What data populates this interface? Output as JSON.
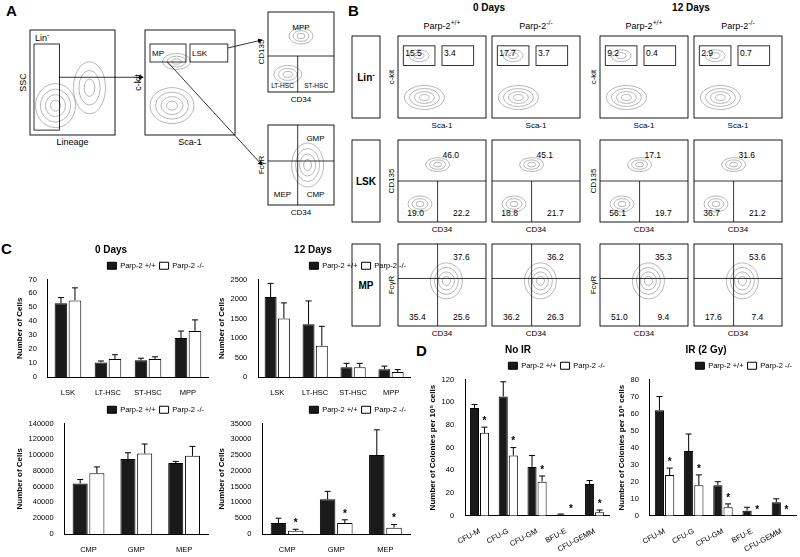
{
  "panel_a": {
    "label": "A",
    "plots": [
      {
        "y_axis": "SSC",
        "x_axis": "Lineage",
        "gates": [
          {
            "text": "Lin",
            "sup": "-"
          }
        ]
      },
      {
        "y_axis": "c-kit",
        "x_axis": "Sca-1",
        "gates": [
          {
            "text": "MP"
          },
          {
            "text": "LSK"
          }
        ]
      },
      {
        "y_axis": "CD135",
        "x_axis": "CD34",
        "gates": [
          {
            "text": "MPP"
          },
          {
            "text": "LT-HSC"
          },
          {
            "text": "ST-HSC"
          }
        ]
      },
      {
        "y_axis": "FcγR",
        "x_axis": "CD34",
        "gates": [
          {
            "text": "GMP"
          },
          {
            "text": "MEP"
          },
          {
            "text": "CMP"
          }
        ]
      }
    ]
  },
  "panel_b": {
    "label": "B",
    "days": [
      "0 Days",
      "12 Days"
    ],
    "genotypes": [
      {
        "text": "Parp-2",
        "sup": "+/+"
      },
      {
        "text": "Parp-2",
        "sup": "-/-"
      }
    ],
    "rows": [
      {
        "label": {
          "text": "Lin",
          "sup": "-"
        },
        "y_axis": "c-kit",
        "x_axis": "Sca-1",
        "values": [
          [
            "15.5",
            "3.4"
          ],
          [
            "17.7",
            "3.7"
          ],
          [
            "9.2",
            "0.4"
          ],
          [
            "2.9",
            "0.7"
          ]
        ]
      },
      {
        "label": {
          "text": "LSK"
        },
        "y_axis": "CD135",
        "x_axis": "CD34",
        "values": [
          [
            "46.0",
            "19.0",
            "22.2"
          ],
          [
            "45.1",
            "18.8",
            "21.7"
          ],
          [
            "17.1",
            "56.1",
            "19.7"
          ],
          [
            "31.6",
            "36.7",
            "21.2"
          ]
        ]
      },
      {
        "label": {
          "text": "MP"
        },
        "y_axis": "FcγR",
        "x_axis": "CD34",
        "values": [
          [
            "37.6",
            "35.4",
            "25.6"
          ],
          [
            "36.2",
            "36.2",
            "26.3"
          ],
          [
            "35.3",
            "51.0",
            "9.4"
          ],
          [
            "53.6",
            "17.6",
            "7.4"
          ]
        ]
      }
    ]
  },
  "panel_c": {
    "label": "C"
  },
  "panel_d": {
    "label": "D"
  },
  "chart_data": [
    {
      "type": "bar",
      "title": "0 Days",
      "categories": [
        "LSK",
        "LT-HSC",
        "ST-HSC",
        "MPP"
      ],
      "y_label": "Number of Cells",
      "ylim": [
        0,
        70
      ],
      "yticks": [
        0,
        10,
        20,
        30,
        40,
        50,
        60,
        70
      ],
      "grid": false,
      "legend": "top right",
      "series": [
        {
          "name": "Parp-2 +/+",
          "color": "#1a1a1a",
          "values": [
            53,
            10.5,
            12,
            28
          ],
          "errors": [
            4,
            1,
            1.5,
            5
          ]
        },
        {
          "name": "Parp-2 -/-",
          "color": "#ffffff",
          "values": [
            55,
            13,
            13,
            33
          ],
          "errors": [
            9,
            3,
            1.5,
            8
          ]
        }
      ]
    },
    {
      "type": "bar",
      "categories": [
        "CMP",
        "GMP",
        "MEP"
      ],
      "y_label": "Number of Cells",
      "ylim": [
        0,
        140000
      ],
      "yticks": [
        0,
        20000,
        40000,
        60000,
        80000,
        100000,
        120000,
        140000
      ],
      "grid": false,
      "legend": "top right",
      "series": [
        {
          "name": "Parp-2 +/+",
          "color": "#1a1a1a",
          "values": [
            64000,
            95000,
            90000
          ],
          "errors": [
            5000,
            8000,
            2000
          ]
        },
        {
          "name": "Parp-2 -/-",
          "color": "#ffffff",
          "values": [
            77000,
            102000,
            99000
          ],
          "errors": [
            8000,
            12000,
            12000
          ]
        }
      ]
    },
    {
      "type": "bar",
      "title": "12 Days",
      "categories": [
        "LSK",
        "LT-HSC",
        "ST-HSC",
        "MPP"
      ],
      "y_label": "Number of Cells",
      "ylim": [
        0,
        2500
      ],
      "yticks": [
        0,
        500,
        1000,
        1500,
        2000,
        2500
      ],
      "grid": false,
      "legend": "top right",
      "series": [
        {
          "name": "Parp-2 +/+",
          "color": "#1a1a1a",
          "values": [
            2050,
            1350,
            250,
            200
          ],
          "errors": [
            350,
            600,
            100,
            80
          ]
        },
        {
          "name": "Parp-2 -/-",
          "color": "#ffffff",
          "values": [
            1500,
            800,
            250,
            130
          ],
          "errors": [
            400,
            500,
            100,
            60
          ]
        }
      ]
    },
    {
      "type": "bar",
      "categories": [
        "CMP",
        "GMP",
        "MEP"
      ],
      "y_label": "Number of Cells",
      "ylim": [
        0,
        35000
      ],
      "yticks": [
        0,
        5000,
        10000,
        15000,
        20000,
        25000,
        30000,
        35000
      ],
      "grid": false,
      "legend": "top right",
      "series": [
        {
          "name": "Parp-2 +/+",
          "color": "#1a1a1a",
          "values": [
            3500,
            11000,
            25000
          ],
          "errors": [
            1500,
            2500,
            8000
          ]
        },
        {
          "name": "Parp-2 -/-",
          "color": "#ffffff",
          "values": [
            1000,
            3500,
            2000
          ],
          "errors": [
            500,
            1000,
            1000
          ],
          "significance": [
            "*",
            "*",
            "*"
          ]
        }
      ]
    },
    {
      "type": "bar",
      "title": "No IR",
      "categories": [
        "CFU-M",
        "CFU-G",
        "CFU-GM",
        "BFU-E",
        "CFU-GEMM"
      ],
      "y_label": "Number of Colonies per 10⁵ cells",
      "ylim": [
        0,
        120
      ],
      "yticks": [
        0,
        20,
        40,
        60,
        80,
        100,
        120
      ],
      "grid": false,
      "legend": "top right",
      "series": [
        {
          "name": "Parp-2 +/+",
          "color": "#1a1a1a",
          "values": [
            95,
            105,
            43,
            1,
            28
          ],
          "errors": [
            3,
            13,
            10,
            0.5,
            3
          ]
        },
        {
          "name": "Parp-2 -/-",
          "color": "#ffffff",
          "values": [
            73,
            53,
            30,
            0,
            3
          ],
          "errors": [
            5,
            7,
            5,
            0,
            2
          ],
          "significance": [
            "*",
            "*",
            "*",
            "*",
            "*"
          ]
        }
      ]
    },
    {
      "type": "bar",
      "title": "IR (2 Gy)",
      "categories": [
        "CFU-M",
        "CFU-G",
        "CFU-GM",
        "BFU-E",
        "CFU-GEMM"
      ],
      "y_label": "Number of Colonies per 10⁵ cells",
      "ylim": [
        0,
        80
      ],
      "yticks": [
        0,
        10,
        20,
        30,
        40,
        50,
        60,
        70,
        80
      ],
      "grid": false,
      "legend": "top right",
      "series": [
        {
          "name": "Parp-2 +/+",
          "color": "#1a1a1a",
          "values": [
            62,
            38,
            18,
            3,
            8
          ],
          "errors": [
            8,
            10,
            2,
            2,
            2
          ]
        },
        {
          "name": "Parp-2 -/-",
          "color": "#ffffff",
          "values": [
            24,
            18,
            5,
            0,
            0
          ],
          "errors": [
            4,
            6,
            2,
            0,
            0
          ],
          "significance": [
            "*",
            "*",
            "*",
            "*",
            "*"
          ]
        }
      ]
    }
  ]
}
